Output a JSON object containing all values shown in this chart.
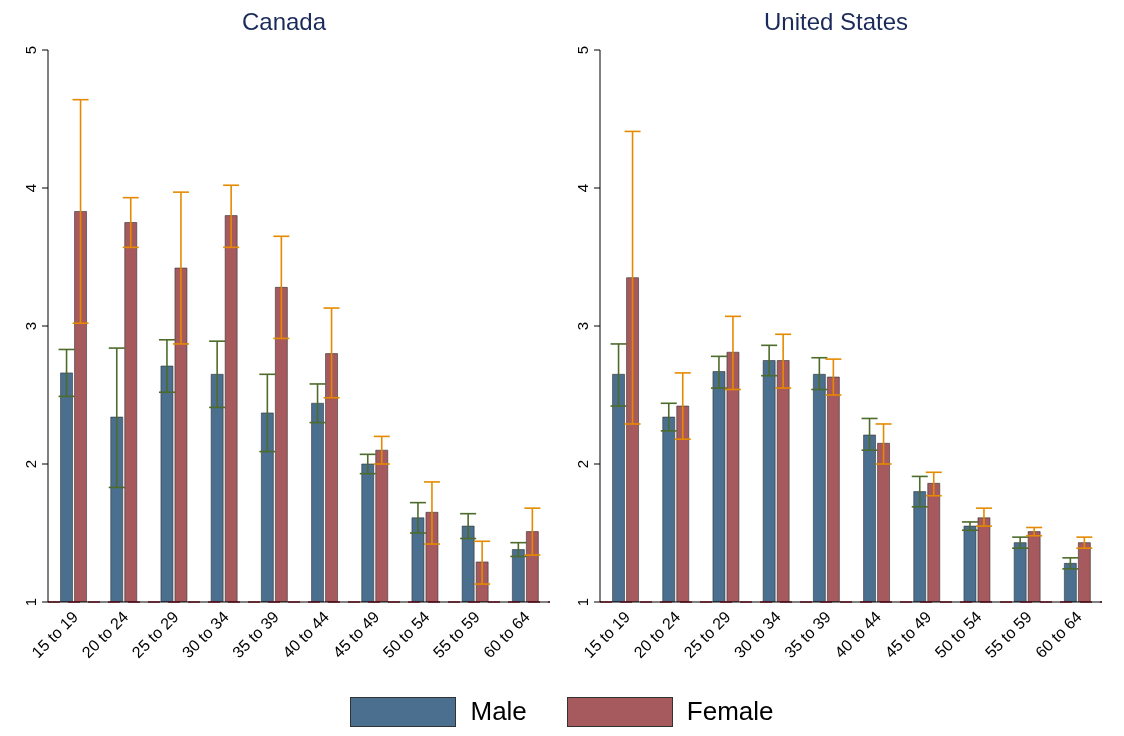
{
  "chart_data": [
    {
      "type": "bar",
      "title": "Canada",
      "categories": [
        "15 to 19",
        "20 to 24",
        "25 to 29",
        "30 to 34",
        "35 to 39",
        "40 to 44",
        "45 to 49",
        "50 to 54",
        "55 to 59",
        "60 to 64"
      ],
      "series": [
        {
          "name": "Male",
          "color": "#4a6f8f",
          "values": [
            2.66,
            2.34,
            2.71,
            2.65,
            2.37,
            2.44,
            2.0,
            1.61,
            1.55,
            1.38
          ],
          "errors": [
            [
              2.49,
              2.83
            ],
            [
              1.83,
              2.84
            ],
            [
              2.52,
              2.9
            ],
            [
              2.41,
              2.89
            ],
            [
              2.09,
              2.65
            ],
            [
              2.3,
              2.58
            ],
            [
              1.93,
              2.07
            ],
            [
              1.5,
              1.72
            ],
            [
              1.46,
              1.64
            ],
            [
              1.33,
              1.43
            ]
          ]
        },
        {
          "name": "Female",
          "color": "#a65a5e",
          "values": [
            3.83,
            3.75,
            3.42,
            3.8,
            3.28,
            2.8,
            2.1,
            1.65,
            1.29,
            1.51
          ],
          "errors": [
            [
              3.02,
              4.64
            ],
            [
              3.57,
              3.93
            ],
            [
              2.87,
              3.97
            ],
            [
              3.57,
              4.02
            ],
            [
              2.91,
              3.65
            ],
            [
              2.48,
              3.13
            ],
            [
              2.0,
              2.2
            ],
            [
              1.42,
              1.87
            ],
            [
              1.13,
              1.44
            ],
            [
              1.34,
              1.68
            ]
          ]
        }
      ],
      "ylim": [
        1,
        5
      ],
      "yticks": [
        1,
        2,
        3,
        4,
        5
      ],
      "grid": false,
      "legend": "bottom",
      "ref_lines": [
        {
          "axis": "y",
          "value": 1,
          "label": null,
          "color": "#b0203a",
          "line_style": "dashed"
        }
      ]
    },
    {
      "type": "bar",
      "title": "United States",
      "categories": [
        "15 to 19",
        "20 to 24",
        "25 to 29",
        "30 to 34",
        "35 to 39",
        "40 to 44",
        "45 to 49",
        "50 to 54",
        "55 to 59",
        "60 to 64"
      ],
      "series": [
        {
          "name": "Male",
          "color": "#4a6f8f",
          "values": [
            2.65,
            2.34,
            2.67,
            2.75,
            2.65,
            2.21,
            1.8,
            1.55,
            1.43,
            1.28
          ],
          "errors": [
            [
              2.42,
              2.87
            ],
            [
              2.24,
              2.44
            ],
            [
              2.55,
              2.78
            ],
            [
              2.64,
              2.86
            ],
            [
              2.54,
              2.77
            ],
            [
              2.1,
              2.33
            ],
            [
              1.69,
              1.91
            ],
            [
              1.52,
              1.58
            ],
            [
              1.39,
              1.47
            ],
            [
              1.24,
              1.32
            ]
          ]
        },
        {
          "name": "Female",
          "color": "#a65a5e",
          "values": [
            3.35,
            2.42,
            2.81,
            2.75,
            2.63,
            2.15,
            1.86,
            1.61,
            1.51,
            1.43
          ],
          "errors": [
            [
              2.29,
              4.41
            ],
            [
              2.18,
              2.66
            ],
            [
              2.54,
              3.07
            ],
            [
              2.55,
              2.94
            ],
            [
              2.5,
              2.76
            ],
            [
              2.0,
              2.29
            ],
            [
              1.77,
              1.94
            ],
            [
              1.55,
              1.68
            ],
            [
              1.48,
              1.54
            ],
            [
              1.39,
              1.47
            ]
          ]
        }
      ],
      "ylim": [
        1,
        5
      ],
      "yticks": [
        1,
        2,
        3,
        4,
        5
      ],
      "grid": false,
      "ref_lines": [
        {
          "axis": "y",
          "value": 1,
          "label": null,
          "color": "#b0203a",
          "line_style": "dashed"
        }
      ]
    }
  ]
}
